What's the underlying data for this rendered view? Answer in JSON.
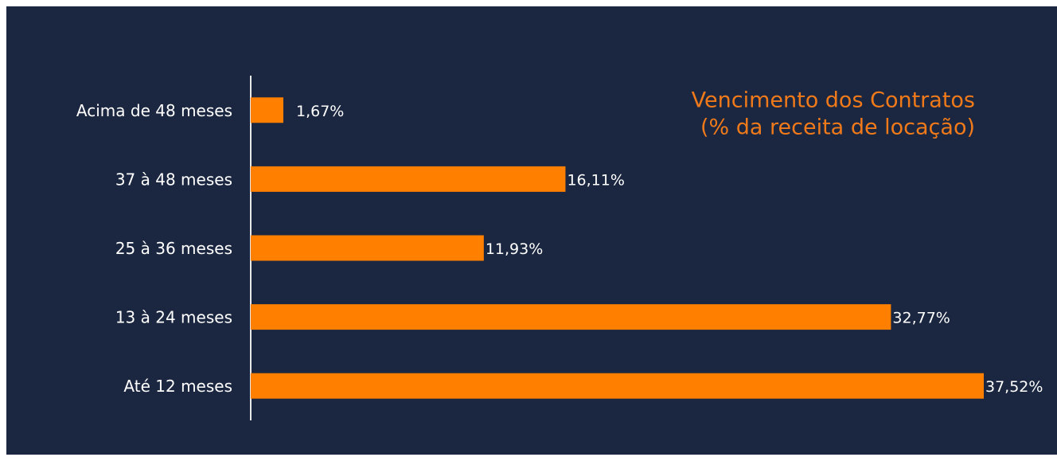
{
  "chart_data": {
    "type": "bar",
    "orientation": "horizontal",
    "title": "Vencimento dos Contratos",
    "subtitle": "(% da receita de locação)",
    "categories": [
      "Acima de 48 meses",
      "37 à 48 meses",
      "25 à 36 meses",
      "13 à 24 meses",
      "Até 12 meses"
    ],
    "values": [
      1.67,
      16.11,
      11.93,
      32.77,
      37.52
    ],
    "value_labels": [
      "1,67%",
      "16,11%",
      "11,93%",
      "32,77%",
      "37,52%"
    ],
    "color": "#ff7f00"
  }
}
